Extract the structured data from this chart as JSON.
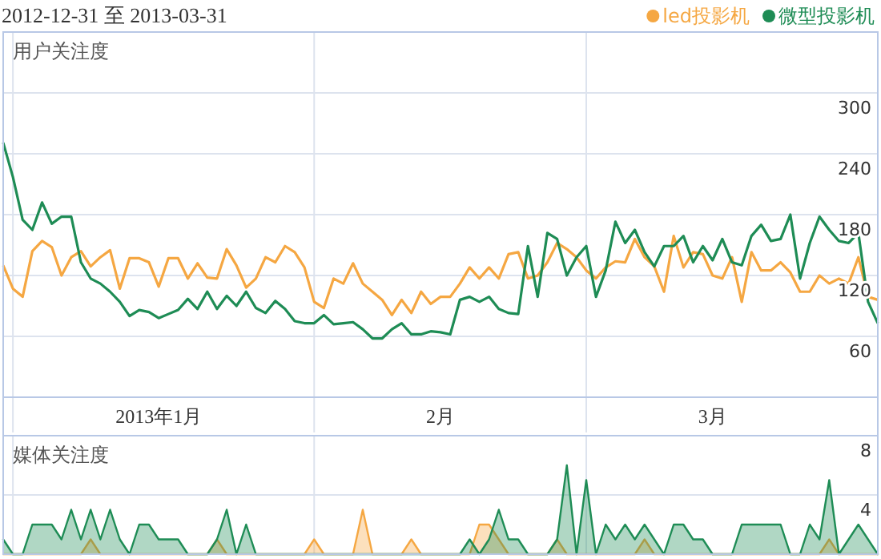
{
  "chart_data": [
    {
      "type": "line",
      "title": "2012-12-31 至 2013-03-31",
      "ylabel": "用户关注度",
      "legend": "top right",
      "grid": true,
      "tick_labels": "xy",
      "xlim": [
        "2012-12-31",
        "2013-03-31"
      ],
      "ylim": [
        0,
        360
      ],
      "yticks": [
        60,
        120,
        180,
        240,
        300
      ],
      "xticks": [
        {
          "value": "2013-01-01",
          "label": null
        },
        {
          "value": "2013-01-16",
          "label": "2013年1月"
        },
        {
          "value": "2013-02-01",
          "label": null
        },
        {
          "value": "2013-02-14",
          "label": "2月"
        },
        {
          "value": "2013-03-01",
          "label": null
        },
        {
          "value": "2013-03-14",
          "label": "3月"
        }
      ],
      "x": [
        "2012-12-31",
        "2013-01-01",
        "2013-01-02",
        "2013-01-03",
        "2013-01-04",
        "2013-01-05",
        "2013-01-06",
        "2013-01-07",
        "2013-01-08",
        "2013-01-09",
        "2013-01-10",
        "2013-01-11",
        "2013-01-12",
        "2013-01-13",
        "2013-01-14",
        "2013-01-15",
        "2013-01-16",
        "2013-01-17",
        "2013-01-18",
        "2013-01-19",
        "2013-01-20",
        "2013-01-21",
        "2013-01-22",
        "2013-01-23",
        "2013-01-24",
        "2013-01-25",
        "2013-01-26",
        "2013-01-27",
        "2013-01-28",
        "2013-01-29",
        "2013-01-30",
        "2013-01-31",
        "2013-02-01",
        "2013-02-02",
        "2013-02-03",
        "2013-02-04",
        "2013-02-05",
        "2013-02-06",
        "2013-02-07",
        "2013-02-08",
        "2013-02-09",
        "2013-02-10",
        "2013-02-11",
        "2013-02-12",
        "2013-02-13",
        "2013-02-14",
        "2013-02-15",
        "2013-02-16",
        "2013-02-17",
        "2013-02-18",
        "2013-02-19",
        "2013-02-20",
        "2013-02-21",
        "2013-02-22",
        "2013-02-23",
        "2013-02-24",
        "2013-02-25",
        "2013-02-26",
        "2013-02-27",
        "2013-02-28",
        "2013-03-01",
        "2013-03-02",
        "2013-03-03",
        "2013-03-04",
        "2013-03-05",
        "2013-03-06",
        "2013-03-07",
        "2013-03-08",
        "2013-03-09",
        "2013-03-10",
        "2013-03-11",
        "2013-03-12",
        "2013-03-13",
        "2013-03-14",
        "2013-03-15",
        "2013-03-16",
        "2013-03-17",
        "2013-03-18",
        "2013-03-19",
        "2013-03-20",
        "2013-03-21",
        "2013-03-22",
        "2013-03-23",
        "2013-03-24",
        "2013-03-25",
        "2013-03-26",
        "2013-03-27",
        "2013-03-28",
        "2013-03-29",
        "2013-03-30",
        "2013-03-31"
      ],
      "series": [
        {
          "name": "led投影机",
          "color": "#f5a742",
          "values": [
            130,
            107,
            99,
            144,
            154,
            148,
            120,
            138,
            144,
            129,
            138,
            145,
            107,
            137,
            137,
            133,
            109,
            137,
            137,
            117,
            132,
            118,
            117,
            146,
            130,
            108,
            117,
            138,
            133,
            149,
            143,
            128,
            94,
            88,
            117,
            112,
            132,
            112,
            104,
            96,
            81,
            96,
            83,
            104,
            92,
            99,
            99,
            112,
            128,
            117,
            128,
            117,
            141,
            143,
            117,
            120,
            133,
            152,
            146,
            138,
            125,
            117,
            128,
            134,
            133,
            156,
            138,
            129,
            104,
            159,
            128,
            143,
            141,
            120,
            117,
            138,
            94,
            143,
            125,
            125,
            133,
            123,
            104,
            104,
            120,
            112,
            117,
            112,
            138,
            99,
            96
          ]
        },
        {
          "name": "微型投影机",
          "color": "#1e8c55",
          "values": [
            251,
            217,
            175,
            165,
            192,
            171,
            178,
            178,
            133,
            117,
            112,
            104,
            94,
            80,
            86,
            84,
            78,
            82,
            86,
            97,
            87,
            104,
            87,
            100,
            90,
            104,
            88,
            83,
            95,
            87,
            75,
            73,
            73,
            81,
            72,
            73,
            74,
            67,
            58,
            58,
            67,
            73,
            62,
            62,
            65,
            64,
            62,
            96,
            99,
            94,
            99,
            87,
            83,
            82,
            149,
            99,
            162,
            156,
            120,
            138,
            149,
            99,
            125,
            173,
            152,
            165,
            143,
            129,
            149,
            149,
            159,
            133,
            149,
            135,
            156,
            133,
            130,
            159,
            170,
            154,
            156,
            180,
            117,
            152,
            178,
            165,
            154,
            152,
            162,
            94,
            73
          ]
        }
      ]
    },
    {
      "type": "area",
      "ylabel": "媒体关注度",
      "grid": true,
      "tick_labels": "y",
      "xlim": [
        "2012-12-31",
        "2013-03-31"
      ],
      "ylim": [
        0,
        8
      ],
      "yticks": [
        4,
        8
      ],
      "xticks": [
        {
          "value": "2013-01-01",
          "label": null
        },
        {
          "value": "2013-02-01",
          "label": null
        },
        {
          "value": "2013-03-01",
          "label": null
        }
      ],
      "x": [
        "2012-12-31",
        "2013-01-01",
        "2013-01-02",
        "2013-01-03",
        "2013-01-04",
        "2013-01-05",
        "2013-01-06",
        "2013-01-07",
        "2013-01-08",
        "2013-01-09",
        "2013-01-10",
        "2013-01-11",
        "2013-01-12",
        "2013-01-13",
        "2013-01-14",
        "2013-01-15",
        "2013-01-16",
        "2013-01-17",
        "2013-01-18",
        "2013-01-19",
        "2013-01-20",
        "2013-01-21",
        "2013-01-22",
        "2013-01-23",
        "2013-01-24",
        "2013-01-25",
        "2013-01-26",
        "2013-01-27",
        "2013-01-28",
        "2013-01-29",
        "2013-01-30",
        "2013-01-31",
        "2013-02-01",
        "2013-02-02",
        "2013-02-03",
        "2013-02-04",
        "2013-02-05",
        "2013-02-06",
        "2013-02-07",
        "2013-02-08",
        "2013-02-09",
        "2013-02-10",
        "2013-02-11",
        "2013-02-12",
        "2013-02-13",
        "2013-02-14",
        "2013-02-15",
        "2013-02-16",
        "2013-02-17",
        "2013-02-18",
        "2013-02-19",
        "2013-02-20",
        "2013-02-21",
        "2013-02-22",
        "2013-02-23",
        "2013-02-24",
        "2013-02-25",
        "2013-02-26",
        "2013-02-27",
        "2013-02-28",
        "2013-03-01",
        "2013-03-02",
        "2013-03-03",
        "2013-03-04",
        "2013-03-05",
        "2013-03-06",
        "2013-03-07",
        "2013-03-08",
        "2013-03-09",
        "2013-03-10",
        "2013-03-11",
        "2013-03-12",
        "2013-03-13",
        "2013-03-14",
        "2013-03-15",
        "2013-03-16",
        "2013-03-17",
        "2013-03-18",
        "2013-03-19",
        "2013-03-20",
        "2013-03-21",
        "2013-03-22",
        "2013-03-23",
        "2013-03-24",
        "2013-03-25",
        "2013-03-26",
        "2013-03-27",
        "2013-03-28",
        "2013-03-29",
        "2013-03-30",
        "2013-03-31"
      ],
      "series": [
        {
          "color": "#f5a742",
          "values": [
            0,
            0,
            0,
            0,
            0,
            0,
            0,
            0,
            0,
            1,
            0,
            0,
            0,
            0,
            0,
            0,
            0,
            0,
            0,
            0,
            0,
            0,
            1,
            0,
            0,
            0,
            0,
            0,
            0,
            0,
            0,
            0,
            1,
            0,
            0,
            0,
            0,
            3,
            0,
            0,
            0,
            0,
            1,
            0,
            0,
            0,
            0,
            0,
            0,
            2,
            2,
            1,
            0,
            0,
            0,
            0,
            0,
            1,
            0,
            0,
            0,
            0,
            0,
            0,
            0,
            0,
            1,
            0,
            0,
            0,
            0,
            0,
            0,
            0,
            0,
            0,
            0,
            0,
            0,
            0,
            0,
            0,
            0,
            0,
            0,
            1,
            0,
            0,
            0,
            0,
            0
          ]
        },
        {
          "color": "#1e8c55",
          "values": [
            1,
            0,
            0,
            2,
            2,
            2,
            1,
            3,
            1,
            3,
            1,
            3,
            1,
            0,
            2,
            2,
            1,
            1,
            1,
            0,
            0,
            0,
            1,
            3,
            0,
            2,
            0,
            0,
            0,
            0,
            0,
            0,
            0,
            0,
            0,
            0,
            0,
            0,
            0,
            0,
            0,
            0,
            0,
            0,
            0,
            0,
            0,
            0,
            1,
            0,
            1,
            3,
            1,
            1,
            0,
            0,
            0,
            1,
            6,
            0,
            5,
            0,
            2,
            1,
            2,
            1,
            2,
            1,
            0,
            2,
            2,
            1,
            1,
            0,
            0,
            0,
            2,
            2,
            2,
            2,
            2,
            0,
            0,
            2,
            1,
            5,
            0,
            1,
            2,
            1,
            0
          ]
        }
      ]
    }
  ]
}
